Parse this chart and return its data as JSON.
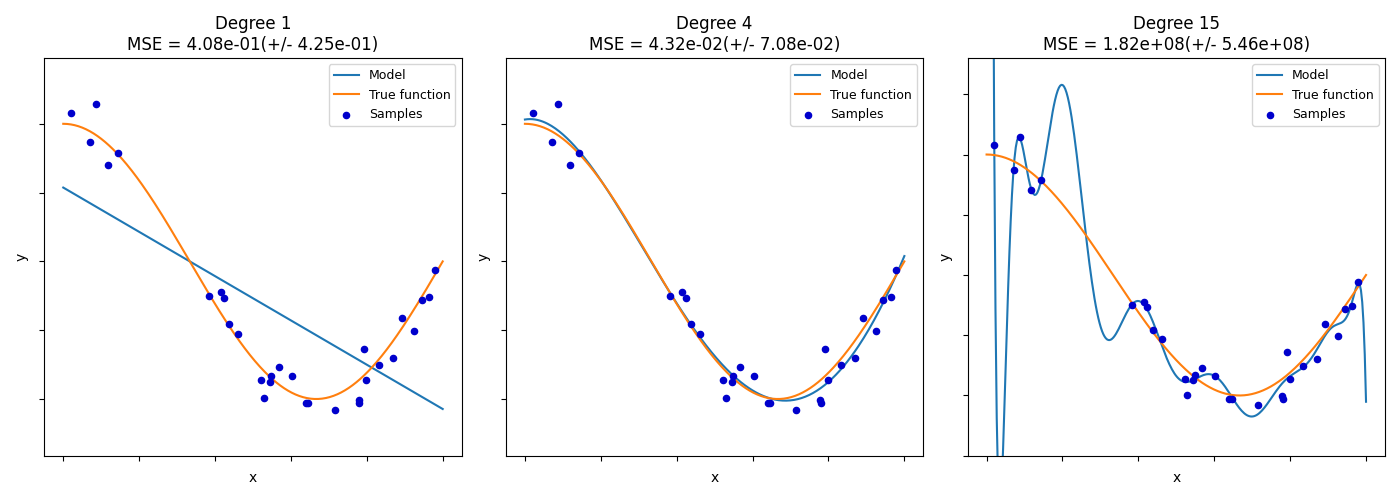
{
  "degrees": [
    1,
    4,
    15
  ],
  "titles": [
    "Degree 1\nMSE = 4.08e-01(+/- 4.25e-01)",
    "Degree 4\nMSE = 4.32e-02(+/- 7.08e-02)",
    "Degree 15\nMSE = 1.82e+08(+/- 5.46e+08)"
  ],
  "model_color": "#1f77b4",
  "true_color": "#ff7f0e",
  "sample_color": "#0000cc",
  "x_range": [
    0.0,
    1.0
  ],
  "n_plot_points": 300,
  "seed": 0,
  "n_samples": 30,
  "noise_std": 0.1,
  "xlabel": "x",
  "ylabel": "y",
  "legend_labels": [
    "Model",
    "True function",
    "Samples"
  ],
  "figsize": [
    14.0,
    5.0
  ],
  "dpi": 100,
  "ylim_deg1": [
    -1.5,
    1.5
  ],
  "ylim_deg4": [
    -1.5,
    1.5
  ],
  "ylim_deg15_auto": true,
  "sample_size": 20,
  "title_fontsize": 12,
  "legend_fontsize": 9
}
